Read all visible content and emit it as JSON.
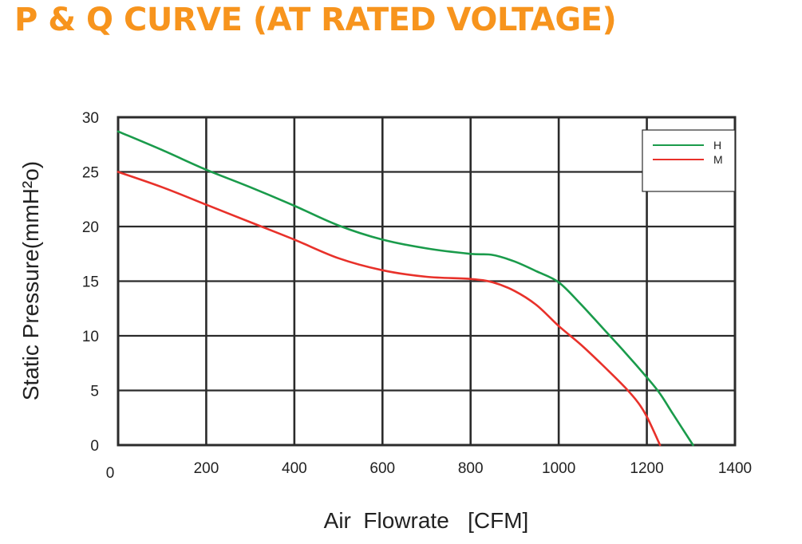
{
  "page": {
    "title": "P & Q CURVE (AT RATED VOLTAGE)"
  },
  "chart_data": {
    "type": "line",
    "xlabel": "Air  Flowrate   [CFM]",
    "ylabel": "Static Pressure(mmH²o)",
    "xlim": [
      0,
      1400
    ],
    "ylim": [
      0,
      30
    ],
    "x_ticks": [
      0,
      200,
      400,
      600,
      800,
      1000,
      1200,
      1400
    ],
    "y_ticks": [
      0,
      5,
      10,
      15,
      20,
      25,
      30
    ],
    "grid": true,
    "legend_position": "top-right",
    "series": [
      {
        "name": "H",
        "color": "#1a9b4b",
        "points": [
          [
            0,
            28.7
          ],
          [
            100,
            27.0
          ],
          [
            200,
            25.2
          ],
          [
            300,
            23.6
          ],
          [
            400,
            21.9
          ],
          [
            500,
            20.1
          ],
          [
            600,
            18.8
          ],
          [
            700,
            18.0
          ],
          [
            800,
            17.5
          ],
          [
            850,
            17.4
          ],
          [
            900,
            16.8
          ],
          [
            950,
            15.9
          ],
          [
            1000,
            14.9
          ],
          [
            1050,
            12.9
          ],
          [
            1100,
            10.7
          ],
          [
            1150,
            8.5
          ],
          [
            1200,
            6.2
          ],
          [
            1230,
            4.7
          ],
          [
            1260,
            2.8
          ],
          [
            1305,
            0
          ]
        ]
      },
      {
        "name": "M",
        "color": "#e8312a",
        "points": [
          [
            0,
            25.0
          ],
          [
            100,
            23.6
          ],
          [
            200,
            22.0
          ],
          [
            300,
            20.4
          ],
          [
            400,
            18.8
          ],
          [
            500,
            17.1
          ],
          [
            600,
            16.0
          ],
          [
            700,
            15.4
          ],
          [
            800,
            15.2
          ],
          [
            850,
            14.9
          ],
          [
            900,
            14.1
          ],
          [
            950,
            12.8
          ],
          [
            1000,
            10.9
          ],
          [
            1050,
            9.2
          ],
          [
            1100,
            7.3
          ],
          [
            1150,
            5.3
          ],
          [
            1180,
            3.9
          ],
          [
            1200,
            2.6
          ],
          [
            1230,
            0
          ]
        ]
      }
    ]
  }
}
